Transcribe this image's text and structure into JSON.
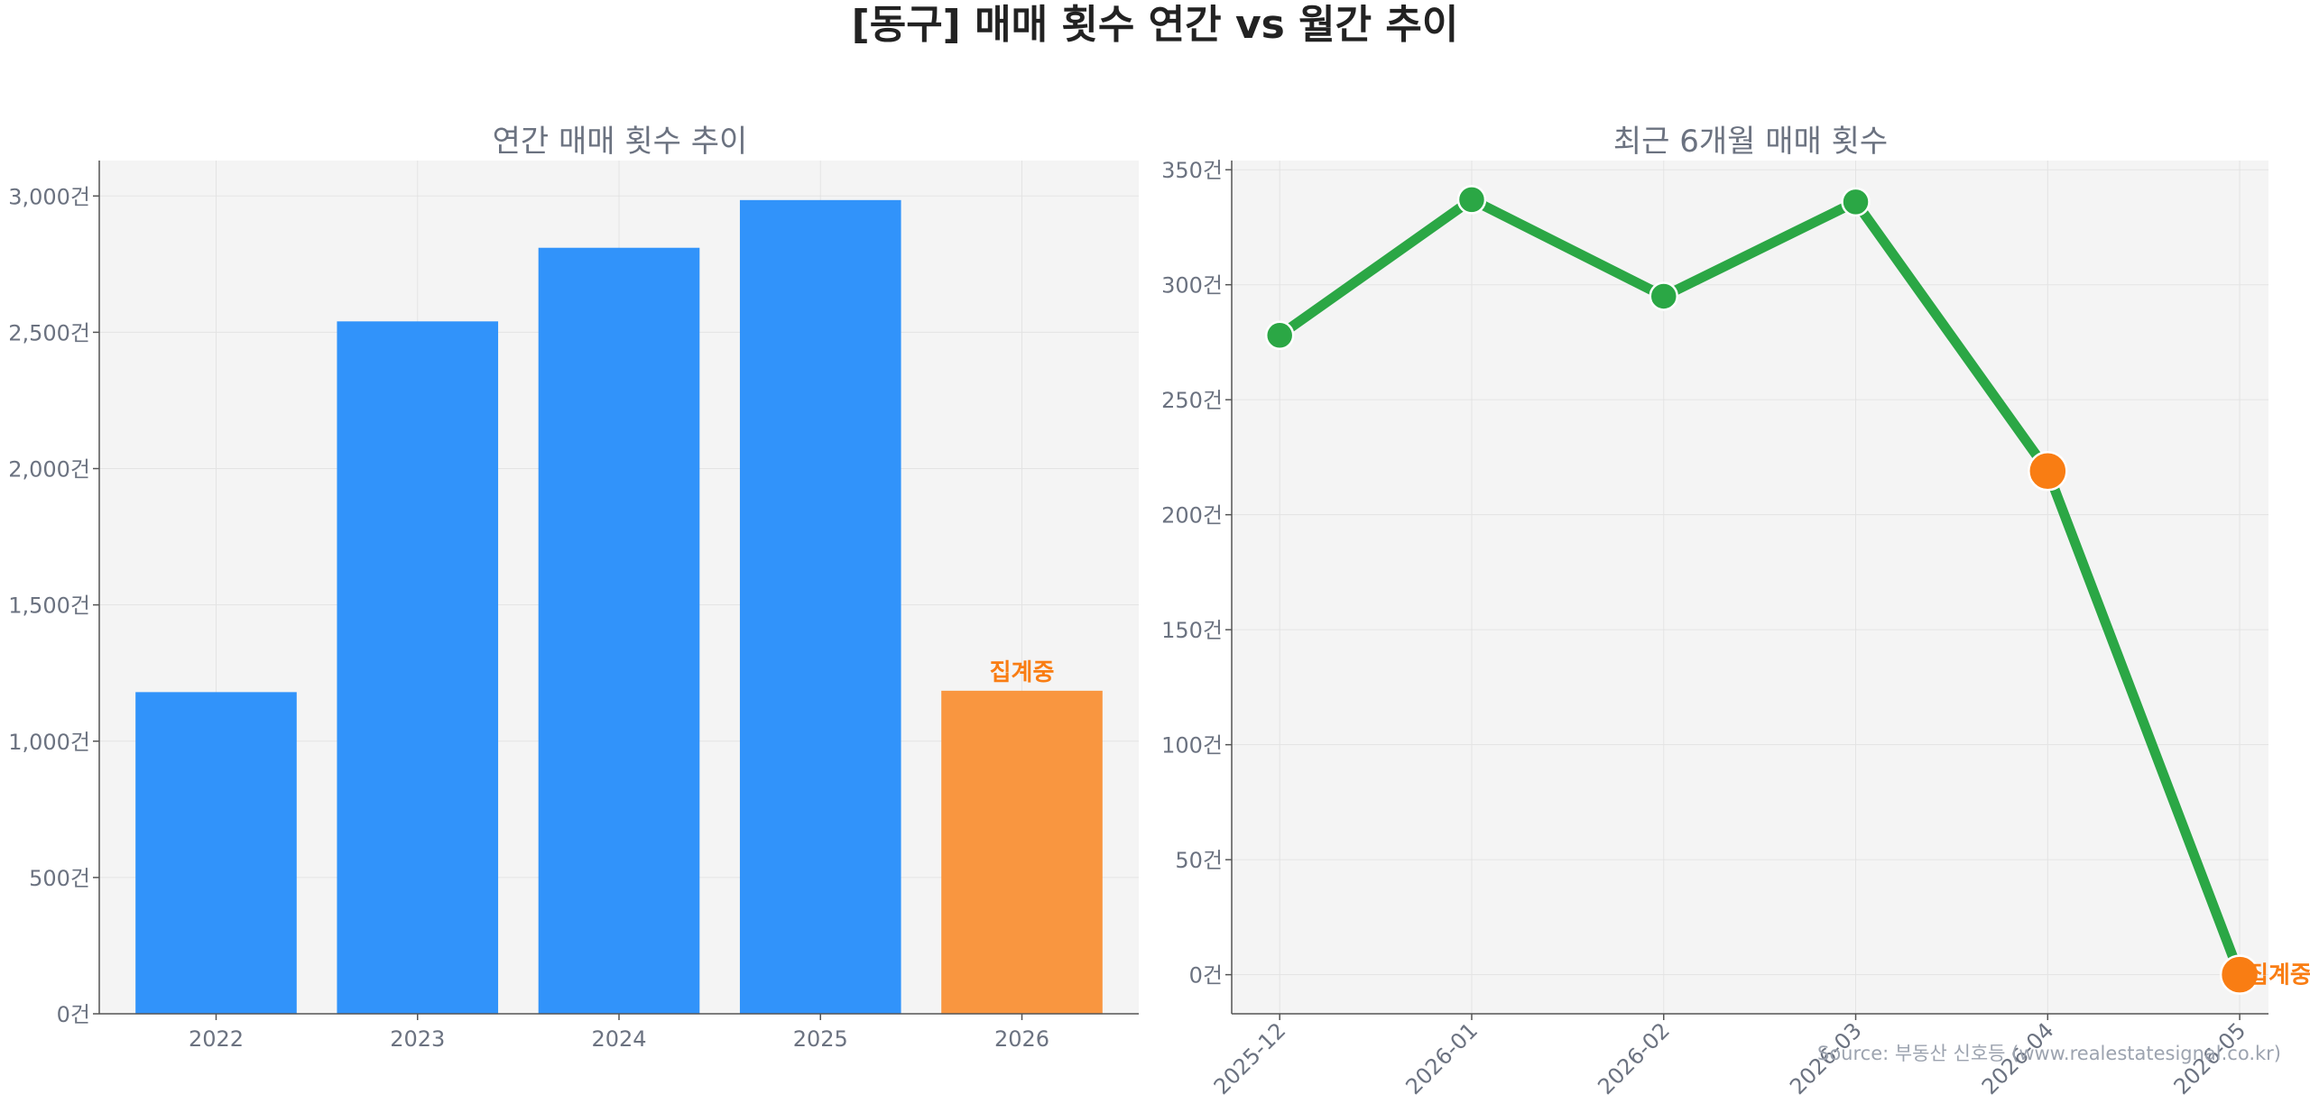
{
  "title": "[동구] 매매 횟수 연간 vs 월간 추이",
  "source": "Source: 부동산 신호등 (www.realestatesignal.co.kr)",
  "colors": {
    "bar": "#3193fa",
    "bar_partial": "#f99640",
    "line": "#2ba745",
    "marker_partial": "#f97d13",
    "note": "#f97d13",
    "panel_bg": "#f4f4f4",
    "grid": "#e3e3e3"
  },
  "chart_data": [
    {
      "type": "bar",
      "title": "연간 매매 횟수 추이",
      "categories": [
        "2022",
        "2023",
        "2024",
        "2025",
        "2026"
      ],
      "values": [
        1180,
        2540,
        2810,
        2985,
        1185
      ],
      "partial_index": 4,
      "annotation": "집계중",
      "ylim": [
        0,
        3130
      ],
      "yticks": [
        0,
        500,
        1000,
        1500,
        2000,
        2500,
        3000
      ],
      "ytick_labels": [
        "0건",
        "500건",
        "1,000건",
        "1,500건",
        "2,000건",
        "2,500건",
        "3,000건"
      ],
      "grid": true,
      "xlabel": "",
      "ylabel": ""
    },
    {
      "type": "line",
      "title": "최근 6개월 매매 횟수",
      "categories": [
        "2025-12",
        "2026-01",
        "2026-02",
        "2026-03",
        "2026-04",
        "2026-05"
      ],
      "values": [
        278,
        337,
        295,
        336,
        219,
        0
      ],
      "partial_indices": [
        4,
        5
      ],
      "annotation": "집계중",
      "ylim": [
        -17,
        354
      ],
      "yticks": [
        0,
        50,
        100,
        150,
        200,
        250,
        300,
        350
      ],
      "ytick_labels": [
        "0건",
        "50건",
        "100건",
        "150건",
        "200건",
        "250건",
        "300건",
        "350건"
      ],
      "grid": true,
      "xlabel": "",
      "ylabel": ""
    }
  ]
}
